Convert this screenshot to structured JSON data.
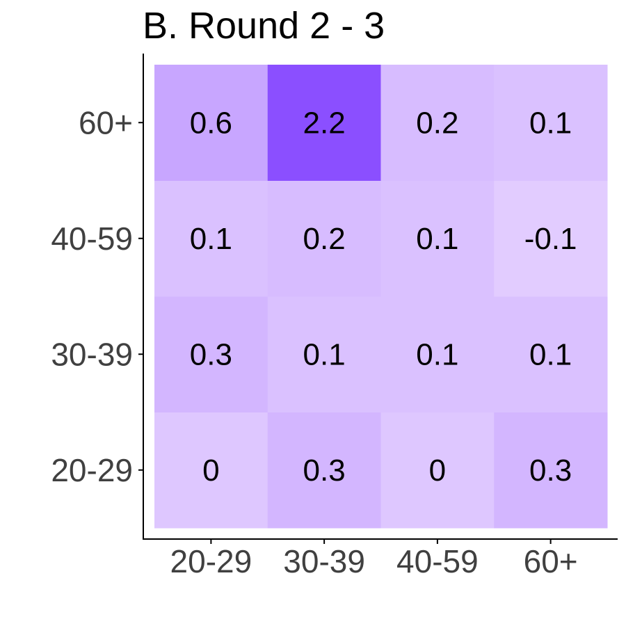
{
  "chart_data": {
    "type": "heatmap",
    "title": "B. Round 2 - 3",
    "xlabel": "",
    "ylabel": "",
    "x_categories": [
      "20-29",
      "30-39",
      "40-59",
      "60+"
    ],
    "y_categories": [
      "20-29",
      "30-39",
      "40-59",
      "60+"
    ],
    "values": [
      [
        0,
        0.3,
        0,
        0.3
      ],
      [
        0.3,
        0.1,
        0.1,
        0.1
      ],
      [
        0.1,
        0.2,
        0.1,
        -0.1
      ],
      [
        0.6,
        2.2,
        0.2,
        0.1
      ]
    ],
    "value_labels": [
      [
        "0",
        "0.3",
        "0",
        "0.3"
      ],
      [
        "0.3",
        "0.1",
        "0.1",
        "0.1"
      ],
      [
        "0.1",
        "0.2",
        "0.1",
        "-0.1"
      ],
      [
        "0.6",
        "2.2",
        "0.2",
        "0.1"
      ]
    ],
    "colors": {
      "low": "#e2ccff",
      "high": "#8b4fff",
      "text": "#000000",
      "tick_text": "#404040",
      "axis": "#000000"
    },
    "grid": false,
    "legend": "none"
  }
}
